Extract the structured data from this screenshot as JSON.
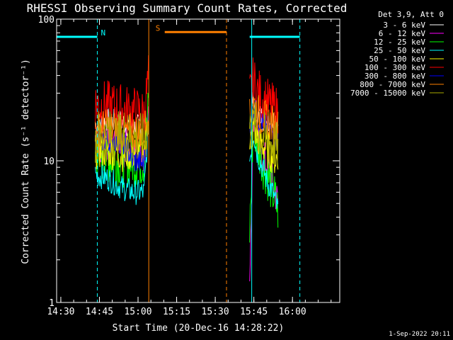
{
  "chart_data": {
    "type": "line",
    "title": "RHESSI Observing Summary Count Rates, Corrected",
    "xlabel": "Start Time (20-Dec-16 14:28:22)",
    "ylabel": "Corrected Count Rate (s⁻¹ detector⁻¹)",
    "yscale": "log",
    "ylim": [
      1,
      100
    ],
    "xlim_minutes": [
      0,
      110
    ],
    "x_ticks": [
      {
        "minute": 1.63,
        "label": "14:30"
      },
      {
        "minute": 16.63,
        "label": "14:45"
      },
      {
        "minute": 31.63,
        "label": "15:00"
      },
      {
        "minute": 46.63,
        "label": "15:15"
      },
      {
        "minute": 61.63,
        "label": "15:30"
      },
      {
        "minute": 76.63,
        "label": "15:45"
      },
      {
        "minute": 91.63,
        "label": "16:00"
      }
    ],
    "y_ticks": [
      {
        "value": 1,
        "label": "1"
      },
      {
        "value": 10,
        "label": "10"
      },
      {
        "value": 100,
        "label": "100"
      }
    ],
    "legend_title": "Det 3,9, Att 0",
    "series": [
      {
        "name": "3 - 6 keV",
        "color": "#ffffff",
        "segments": [
          {
            "x": [
              15,
              20,
              25,
              30,
              34,
              35.7
            ],
            "y": [
              18,
              19,
              19,
              17,
              18,
              20
            ]
          },
          {
            "x": [
              76,
              78,
              80,
              82,
              84,
              86
            ],
            "y": [
              25,
              22,
              20,
              19,
              21,
              18
            ]
          }
        ]
      },
      {
        "name": "6 - 12 keV",
        "color": "#ff00ff",
        "segments": [
          {
            "x": [
              15,
              20,
              25,
              30,
              34,
              35.7
            ],
            "y": [
              13,
              13,
              12,
              12,
              12,
              20
            ]
          },
          {
            "x": [
              75,
              76.5,
              78,
              80,
              82,
              84,
              86
            ],
            "y": [
              1.5,
              22,
              14,
              11,
              9,
              7,
              5
            ]
          }
        ]
      },
      {
        "name": "12 - 25 keV",
        "color": "#00ff00",
        "segments": [
          {
            "x": [
              15,
              20,
              25,
              30,
              34,
              35.7
            ],
            "y": [
              11,
              10.5,
              10,
              10,
              10,
              24
            ]
          },
          {
            "x": [
              75,
              76.5,
              78,
              80,
              82,
              84,
              86
            ],
            "y": [
              3,
              20,
              13,
              10,
              8,
              6,
              4.5
            ]
          }
        ]
      },
      {
        "name": "25 - 50 keV",
        "color": "#00ffff",
        "segments": [
          {
            "x": [
              15,
              20,
              25,
              30,
              34,
              35.7
            ],
            "y": [
              8,
              7.5,
              6.5,
              6,
              6,
              18
            ]
          },
          {
            "x": [
              75,
              76.5,
              78,
              80,
              82,
              84,
              86
            ],
            "y": [
              10,
              16,
              11,
              9,
              7,
              6,
              4.5
            ]
          }
        ]
      },
      {
        "name": "50 - 100 keV",
        "color": "#ffff00",
        "segments": [
          {
            "x": [
              15,
              20,
              25,
              30,
              34,
              35.7
            ],
            "y": [
              12,
              12,
              11.5,
              11.5,
              11.5,
              22
            ]
          },
          {
            "x": [
              75,
              76.5,
              78,
              80,
              82,
              84,
              86
            ],
            "y": [
              11,
              18,
              15,
              13,
              12,
              11,
              10
            ]
          }
        ]
      },
      {
        "name": "100 - 300 keV",
        "color": "#ff0000",
        "segments": [
          {
            "x": [
              15,
              20,
              25,
              30,
              34,
              35.7
            ],
            "y": [
              25,
              24,
              23,
              22,
              21,
              38
            ]
          },
          {
            "x": [
              75,
              76.5,
              78,
              80,
              82,
              84,
              86
            ],
            "y": [
              28,
              36,
              30,
              27,
              25,
              23,
              22
            ]
          }
        ]
      },
      {
        "name": "300 - 800 keV",
        "color": "#0000ff",
        "segments": [
          {
            "x": [
              15,
              20,
              25,
              30,
              34,
              35.7
            ],
            "y": [
              14,
              14,
              14,
              10,
              9.5,
              20
            ]
          },
          {
            "x": [
              75,
              76.5,
              78,
              80,
              82,
              84,
              86
            ],
            "y": [
              18,
              24,
              20,
              18,
              17,
              16,
              14
            ]
          }
        ]
      },
      {
        "name": "800 - 7000 keV",
        "color": "#ff8000",
        "segments": [
          {
            "x": [
              15,
              20,
              25,
              30,
              34,
              35.7
            ],
            "y": [
              17,
              17,
              16,
              16,
              16,
              26
            ]
          },
          {
            "x": [
              75,
              76.5,
              78,
              80,
              82,
              84,
              86
            ],
            "y": [
              20,
              26,
              22,
              20,
              19,
              18,
              17
            ]
          }
        ]
      },
      {
        "name": "7000 - 15000 keV",
        "color": "#aaaa00",
        "segments": [
          {
            "x": [
              15,
              20,
              25,
              30,
              34,
              35.7
            ],
            "y": [
              15,
              15,
              14.5,
              14.5,
              14,
              18
            ]
          },
          {
            "x": [
              75,
              76.5,
              78,
              80,
              82,
              84,
              86
            ],
            "y": [
              16,
              18,
              16,
              15,
              14,
              13,
              12
            ]
          }
        ]
      }
    ],
    "flag_bars": [
      {
        "label": "",
        "color": "#00ffff",
        "x": [
          0,
          15.8
        ],
        "y": 75
      },
      {
        "label": "N",
        "color": "#00ffff",
        "x": [
          15.8,
          16.5
        ],
        "y": 75,
        "label_only": true
      },
      {
        "label": "S",
        "color": "#ff8000",
        "x": [
          42,
          66
        ],
        "y": 81
      },
      {
        "label": "",
        "color": "#00ffff",
        "x": [
          75,
          94.5
        ],
        "y": 75
      }
    ],
    "vertical_markers": [
      {
        "x": 0,
        "color": "#00ffff",
        "style": "solid"
      },
      {
        "x": 15.8,
        "color": "#00ffff",
        "style": "dashed"
      },
      {
        "x": 35.8,
        "color": "#ff8000",
        "style": "solid"
      },
      {
        "x": 66,
        "color": "#ff8000",
        "style": "dashed"
      },
      {
        "x": 75.8,
        "color": "#00ffff",
        "style": "solid"
      },
      {
        "x": 94.5,
        "color": "#00ffff",
        "style": "dashed"
      }
    ]
  },
  "footer_date": "1-Sep-2022 20:11"
}
